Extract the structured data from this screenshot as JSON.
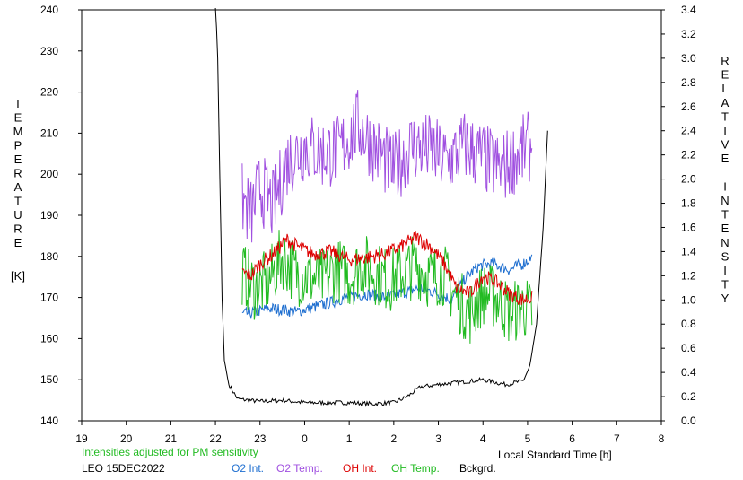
{
  "chart_data": {
    "type": "line",
    "station": "LEO",
    "date": "15DEC2022",
    "station_date": "LEO 15DEC2022",
    "note": "Intensities adjusted for PM sensitivity",
    "xlabel": "Local Standard Time [h]",
    "ylabel_left": [
      "T",
      "E",
      "M",
      "P",
      "E",
      "R",
      "A",
      "T",
      "U",
      "R",
      "E"
    ],
    "ylabel_left_unit": "[K]",
    "ylabel_right": [
      "R",
      "E",
      "L",
      "A",
      "T",
      "I",
      "V",
      "E",
      "",
      "I",
      "N",
      "T",
      "E",
      "N",
      "S",
      "I",
      "T",
      "Y"
    ],
    "x_ticks": [
      "19",
      "20",
      "21",
      "22",
      "23",
      "0",
      "1",
      "2",
      "3",
      "4",
      "5",
      "6",
      "7",
      "8"
    ],
    "xlim": [
      19,
      32
    ],
    "ylim_left": [
      140,
      240
    ],
    "y_left_ticks": [
      "140",
      "150",
      "160",
      "170",
      "180",
      "190",
      "200",
      "210",
      "220",
      "230",
      "240"
    ],
    "ylim_right": [
      0.0,
      3.4
    ],
    "y_right_ticks": [
      "0.0",
      "0.2",
      "0.4",
      "0.6",
      "0.8",
      "1.0",
      "1.2",
      "1.4",
      "1.6",
      "1.8",
      "2.0",
      "2.2",
      "2.4",
      "2.6",
      "2.8",
      "3.0",
      "3.2",
      "3.4"
    ],
    "grid": false,
    "legend_position": "bottom",
    "series": [
      {
        "name": "O2 Int.",
        "axis": "right",
        "color": "#1f6fd0",
        "x": [
          22.6,
          22.9,
          23.2,
          23.5,
          23.8,
          24.2,
          24.6,
          25.0,
          25.4,
          25.8,
          26.2,
          26.6,
          27.0,
          27.3,
          27.6,
          27.9,
          28.2,
          28.6,
          28.9,
          29.1
        ],
        "y": [
          0.88,
          0.9,
          0.93,
          0.92,
          0.9,
          0.94,
          0.98,
          1.03,
          1.05,
          1.02,
          1.06,
          1.1,
          1.05,
          1.0,
          1.18,
          1.28,
          1.3,
          1.25,
          1.3,
          1.35
        ]
      },
      {
        "name": "O2 Temp.",
        "axis": "left",
        "color": "#a050e0",
        "x": [
          22.6,
          22.8,
          23.0,
          23.3,
          23.6,
          24.0,
          24.4,
          24.8,
          25.2,
          25.6,
          26.0,
          26.4,
          26.8,
          27.2,
          27.6,
          28.0,
          28.4,
          28.8,
          29.1
        ],
        "y": [
          194,
          190,
          197,
          192,
          203,
          207,
          205,
          206,
          212,
          206,
          201,
          207,
          206,
          203,
          207,
          204,
          201,
          205,
          207
        ]
      },
      {
        "name": "OH Int.",
        "axis": "right",
        "color": "#dd0000",
        "x": [
          22.6,
          22.8,
          23.0,
          23.3,
          23.6,
          23.9,
          24.2,
          24.6,
          25.0,
          25.4,
          25.8,
          26.2,
          26.5,
          26.8,
          27.1,
          27.4,
          27.7,
          28.0,
          28.3,
          28.6,
          28.9,
          29.1
        ],
        "y": [
          1.23,
          1.2,
          1.3,
          1.38,
          1.5,
          1.43,
          1.38,
          1.4,
          1.33,
          1.35,
          1.38,
          1.45,
          1.52,
          1.45,
          1.32,
          1.1,
          1.05,
          1.2,
          1.15,
          1.05,
          1.0,
          1.02
        ]
      },
      {
        "name": "OH Temp.",
        "axis": "left",
        "color": "#22bb22",
        "x": [
          22.6,
          22.9,
          23.2,
          23.5,
          23.8,
          24.1,
          24.4,
          24.7,
          25.0,
          25.3,
          25.6,
          25.9,
          26.2,
          26.5,
          26.8,
          27.1,
          27.4,
          27.7,
          28.0,
          28.3,
          28.6,
          28.9,
          29.1
        ],
        "y": [
          176,
          172,
          174,
          180,
          176,
          175,
          174,
          177,
          175,
          178,
          176,
          174,
          176,
          178,
          175,
          176,
          170,
          166,
          171,
          170,
          166,
          168,
          166
        ]
      },
      {
        "name": "Bckgrd.",
        "axis": "right",
        "color": "#000000",
        "x": [
          22.0,
          22.05,
          22.1,
          22.15,
          22.2,
          22.3,
          22.5,
          23.0,
          23.5,
          24.0,
          24.5,
          25.0,
          25.5,
          26.0,
          26.3,
          26.6,
          27.0,
          27.5,
          28.0,
          28.5,
          28.9,
          29.05,
          29.2,
          29.35,
          29.45
        ],
        "y": [
          3.5,
          3.0,
          2.0,
          1.0,
          0.5,
          0.3,
          0.18,
          0.16,
          0.17,
          0.15,
          0.15,
          0.15,
          0.14,
          0.15,
          0.2,
          0.28,
          0.3,
          0.32,
          0.34,
          0.3,
          0.33,
          0.45,
          0.8,
          1.6,
          2.4
        ]
      }
    ]
  }
}
